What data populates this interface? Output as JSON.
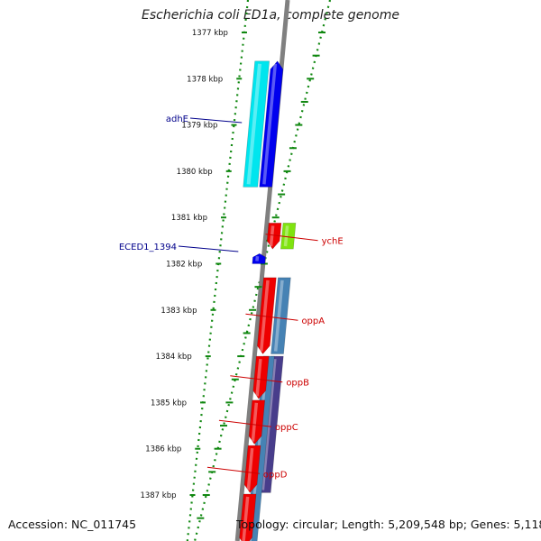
{
  "title": "Escherichia coli ED1a, complete genome",
  "footer": {
    "accession": "Accession: NC_011745",
    "topology": "Topology: circular; Length: 5,209,548 bp; Genes: 5,118"
  },
  "kbp_labels": [
    "1377 kbp",
    "1378 kbp",
    "1379 kbp",
    "1380 kbp",
    "1381 kbp",
    "1382 kbp",
    "1383 kbp",
    "1384 kbp",
    "1385 kbp",
    "1386 kbp",
    "1387 kbp"
  ],
  "genes": [
    {
      "name": "adhE",
      "strand": "reverse",
      "start": 1377.62,
      "end": 1380.34,
      "color": "#0000ee",
      "label_color": "#00008b"
    },
    {
      "name": "adhE-ortholog",
      "strand": "reverse",
      "start": 1377.62,
      "end": 1380.34,
      "color": "#00e5ee",
      "ring": "cog",
      "unlabeled": true
    },
    {
      "name": "ECED1_1394",
      "strand": "reverse",
      "start": 1381.78,
      "end": 1382.0,
      "color": "#0000ee",
      "label_color": "#00008b"
    },
    {
      "name": "ychE",
      "strand": "forward",
      "start": 1381.12,
      "end": 1381.68,
      "color": "#ee0000",
      "label_color": "#cc0000"
    },
    {
      "name": "ychE-cog",
      "strand": "forward",
      "start": 1381.12,
      "end": 1381.68,
      "color": "#7fe30f",
      "ring": "cog",
      "unlabeled": true
    },
    {
      "name": "oppA",
      "strand": "forward",
      "start": 1382.3,
      "end": 1383.95,
      "color": "#ee0000",
      "label_color": "#cc0000"
    },
    {
      "name": "oppA-cog",
      "strand": "forward",
      "start": 1382.3,
      "end": 1383.95,
      "color": "#4682b4",
      "ring": "cog",
      "unlabeled": true
    },
    {
      "name": "oppB",
      "strand": "forward",
      "start": 1384.0,
      "end": 1384.92,
      "color": "#ee0000",
      "label_color": "#cc0000"
    },
    {
      "name": "oppC",
      "strand": "forward",
      "start": 1384.95,
      "end": 1385.9,
      "color": "#ee0000",
      "label_color": "#cc0000"
    },
    {
      "name": "oppD",
      "strand": "forward",
      "start": 1385.93,
      "end": 1386.95,
      "color": "#ee0000",
      "label_color": "#cc0000"
    },
    {
      "name": "opp-cog-purple",
      "strand": "forward",
      "start": 1384.0,
      "end": 1386.95,
      "color": "#483d8b",
      "ring": "cog",
      "unlabeled": true
    },
    {
      "name": "opp-cog-blue",
      "strand": "forward",
      "start": 1384.0,
      "end": 1388.1,
      "color": "#4682b4",
      "ring": "cog2",
      "unlabeled": true
    },
    {
      "name": "oppF",
      "strand": "forward",
      "start": 1386.98,
      "end": 1388.1,
      "color": "#ee0000",
      "unlabeled": true
    }
  ]
}
